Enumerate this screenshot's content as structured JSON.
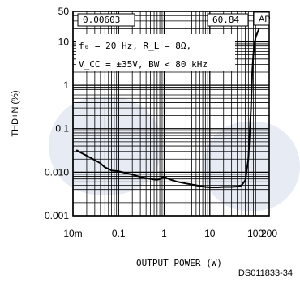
{
  "chart_data": {
    "type": "line",
    "ylabel": "THD+N (%)",
    "xlabel": "OUTPUT POWER (W)",
    "x_scale": "log",
    "y_scale": "log",
    "xlim": [
      0.01,
      200
    ],
    "ylim": [
      0.001,
      50
    ],
    "x_ticks": [
      {
        "value": 0.01,
        "label": "10m"
      },
      {
        "value": 0.1,
        "label": "0.1"
      },
      {
        "value": 1,
        "label": "1"
      },
      {
        "value": 10,
        "label": "10"
      },
      {
        "value": 100,
        "label": "100"
      },
      {
        "value": 200,
        "label": "200"
      }
    ],
    "y_ticks": [
      {
        "value": 0.001,
        "label": "0.001"
      },
      {
        "value": 0.01,
        "label": "0.010"
      },
      {
        "value": 0.1,
        "label": "0.1"
      },
      {
        "value": 1,
        "label": "1"
      },
      {
        "value": 10,
        "label": "10"
      },
      {
        "value": 50,
        "label": "50"
      }
    ],
    "grid": true,
    "annotations": {
      "box_left": "0.00603",
      "box_right": "60.84",
      "corner_tag": "AP",
      "condition_line1": "f₀ = 20 Hz, R_L = 8Ω,",
      "condition_line2": "V_CC = ±35V, BW < 80 kHz"
    },
    "series": [
      {
        "x": [
          0.012,
          0.015,
          0.02,
          0.03,
          0.04,
          0.05,
          0.07,
          0.1,
          0.15,
          0.2,
          0.3,
          0.5,
          0.6,
          0.7,
          0.8,
          0.9,
          1.0,
          1.1,
          1.3,
          1.6,
          2.0,
          3,
          5,
          8,
          10,
          15,
          20,
          30,
          40,
          50,
          60,
          70,
          80,
          85,
          90,
          95,
          100,
          110,
          120
        ],
        "y": [
          0.032,
          0.028,
          0.024,
          0.019,
          0.016,
          0.013,
          0.011,
          0.0105,
          0.0095,
          0.0088,
          0.0078,
          0.007,
          0.0068,
          0.0067,
          0.0069,
          0.0077,
          0.008,
          0.0075,
          0.0069,
          0.0064,
          0.006,
          0.0055,
          0.005,
          0.0046,
          0.0045,
          0.0045,
          0.0046,
          0.0046,
          0.0047,
          0.005,
          0.0065,
          0.02,
          0.3,
          2,
          5,
          9,
          12,
          16,
          20
        ]
      }
    ]
  },
  "footer": {
    "code": "DS011833-34"
  },
  "colors": {
    "line": "#000000",
    "grid": "#000000",
    "watermark": "#dfe6f0"
  }
}
